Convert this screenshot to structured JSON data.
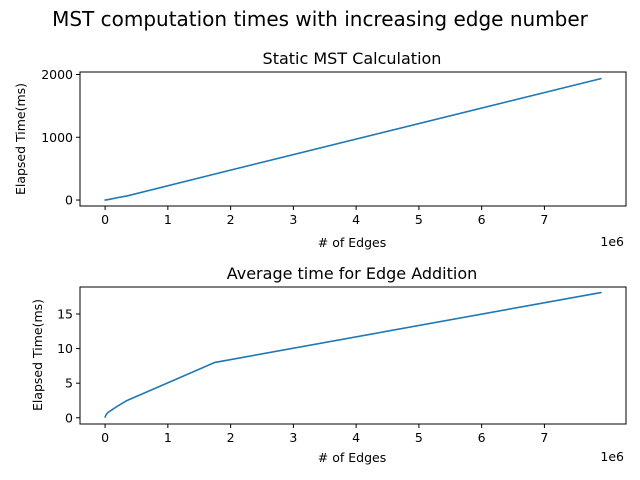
{
  "figure": {
    "suptitle": "MST computation times with increasing edge number"
  },
  "chart_data": [
    {
      "type": "line",
      "title": "Static MST Calculation",
      "xlabel": "# of Edges",
      "ylabel": "Elapsed Time(ms)",
      "x_offset_label": "1e6",
      "x_multiplier": 1000000,
      "xlim": [
        -400000,
        8300000
      ],
      "ylim": [
        -95,
        2040
      ],
      "xticks": [
        0,
        1000000,
        2000000,
        3000000,
        4000000,
        5000000,
        6000000,
        7000000
      ],
      "xtick_labels": [
        "0",
        "1",
        "2",
        "3",
        "4",
        "5",
        "6",
        "7"
      ],
      "yticks": [
        0,
        1000,
        2000
      ],
      "ytick_labels": [
        "0",
        "1000",
        "2000"
      ],
      "grid": false,
      "series": [
        {
          "color": "#1f77b4",
          "x": [
            0,
            50000,
            100000,
            200000,
            350000,
            1750000,
            7900000
          ],
          "y": [
            0,
            8,
            18,
            38,
            65,
            415,
            1935
          ]
        }
      ]
    },
    {
      "type": "line",
      "title": "Average time for Edge Addition",
      "xlabel": "# of Edges",
      "ylabel": "Elapsed Time(ms)",
      "x_offset_label": "1e6",
      "x_multiplier": 1000000,
      "xlim": [
        -400000,
        8300000
      ],
      "ylim": [
        -0.9,
        18.9
      ],
      "xticks": [
        0,
        1000000,
        2000000,
        3000000,
        4000000,
        5000000,
        6000000,
        7000000
      ],
      "xtick_labels": [
        "0",
        "1",
        "2",
        "3",
        "4",
        "5",
        "6",
        "7"
      ],
      "yticks": [
        0,
        5,
        10,
        15
      ],
      "ytick_labels": [
        "0",
        "5",
        "10",
        "15"
      ],
      "grid": false,
      "series": [
        {
          "color": "#1f77b4",
          "x": [
            0,
            20000,
            50000,
            100000,
            200000,
            350000,
            1750000,
            7900000
          ],
          "y": [
            0.1,
            0.5,
            0.8,
            1.1,
            1.7,
            2.5,
            8.0,
            18.1
          ]
        }
      ]
    }
  ]
}
